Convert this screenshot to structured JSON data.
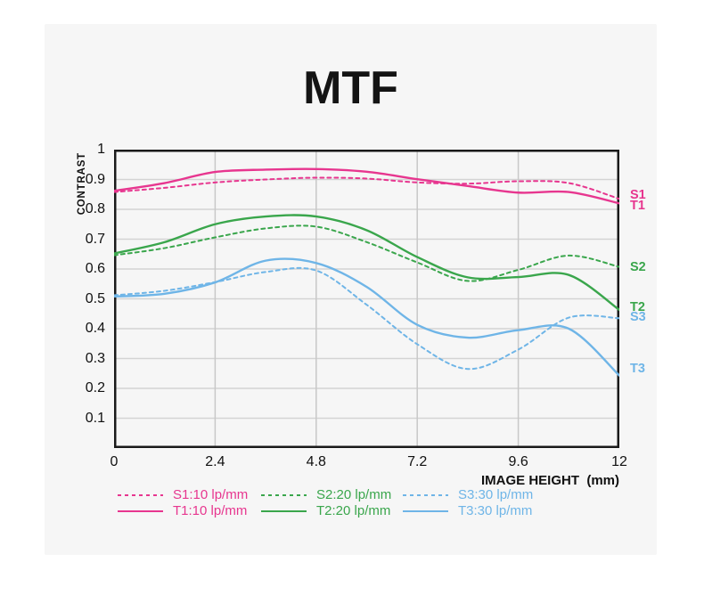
{
  "page": {
    "background": "#ffffff",
    "card_background": "#f6f6f6"
  },
  "chart_data": {
    "type": "line",
    "title": "MTF",
    "xlabel": "IMAGE HEIGHT  (mm)",
    "ylabel": "CONTRAST",
    "xlim": [
      0,
      12
    ],
    "ylim": [
      0,
      1
    ],
    "x_ticks": [
      "0",
      "2.4",
      "4.8",
      "7.2",
      "9.6",
      "12"
    ],
    "x_tick_values": [
      0,
      2.4,
      4.8,
      7.2,
      9.6,
      12
    ],
    "y_ticks": [
      "1",
      "0.9",
      "0.8",
      "0.7",
      "0.6",
      "0.5",
      "0.4",
      "0.3",
      "0.2",
      "0.1"
    ],
    "y_tick_values": [
      1,
      0.9,
      0.8,
      0.7,
      0.6,
      0.5,
      0.4,
      0.3,
      0.2,
      0.1
    ],
    "grid": true,
    "legend_position": "bottom",
    "frame_color": "#1a1a1a",
    "gridline_color_h": "#d3d3d3",
    "gridline_color_v": "#c8c8c8",
    "x": [
      0,
      1.2,
      2.4,
      3.6,
      4.8,
      6,
      7.2,
      8.4,
      9.6,
      10.8,
      12
    ],
    "series": [
      {
        "short": "S1",
        "name": "S1:10 lp/mm",
        "color": "#e7368f",
        "style": "dashed",
        "label_v": 0.849,
        "values": [
          0.858,
          0.872,
          0.89,
          0.9,
          0.906,
          0.903,
          0.89,
          0.886,
          0.894,
          0.888,
          0.835
        ]
      },
      {
        "short": "T1",
        "name": "T1:10 lp/mm",
        "color": "#e7368f",
        "style": "solid",
        "label_v": 0.813,
        "values": [
          0.862,
          0.888,
          0.925,
          0.933,
          0.935,
          0.926,
          0.901,
          0.878,
          0.856,
          0.858,
          0.82
        ]
      },
      {
        "short": "S2",
        "name": "S2:20 lp/mm",
        "color": "#3aa64c",
        "style": "dashed",
        "label_v": 0.607,
        "values": [
          0.646,
          0.67,
          0.706,
          0.736,
          0.742,
          0.69,
          0.622,
          0.56,
          0.597,
          0.645,
          0.607
        ]
      },
      {
        "short": "T2",
        "name": "T2:20 lp/mm",
        "color": "#3aa64c",
        "style": "solid",
        "label_v": 0.473,
        "values": [
          0.652,
          0.69,
          0.75,
          0.776,
          0.776,
          0.73,
          0.64,
          0.572,
          0.573,
          0.58,
          0.463
        ]
      },
      {
        "short": "S3",
        "name": "S3:30 lp/mm",
        "color": "#6fb5e7",
        "style": "dashed",
        "label_v": 0.44,
        "values": [
          0.512,
          0.527,
          0.556,
          0.59,
          0.595,
          0.48,
          0.348,
          0.265,
          0.33,
          0.437,
          0.435
        ]
      },
      {
        "short": "T3",
        "name": "T3:30 lp/mm",
        "color": "#6fb5e7",
        "style": "solid",
        "label_v": 0.267,
        "values": [
          0.508,
          0.517,
          0.555,
          0.628,
          0.62,
          0.54,
          0.413,
          0.37,
          0.395,
          0.4,
          0.243
        ]
      }
    ]
  }
}
